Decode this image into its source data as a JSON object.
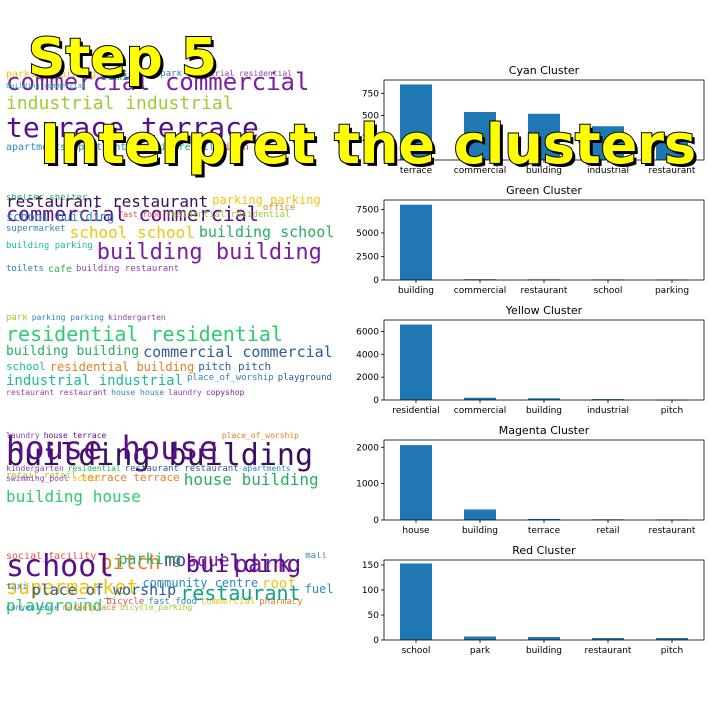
{
  "overlay": {
    "step": "Step 5",
    "subtitle": "Interpret the clusters"
  },
  "colors": {
    "bar": "#1f77b4",
    "overlay_fill": "#ffff00",
    "overlay_stroke": "#000000"
  },
  "wordclouds": [
    {
      "words": [
        {
          "t": "commercial commercial",
          "c": "#7a1fa2",
          "s": 24
        },
        {
          "t": "industrial industrial",
          "c": "#9acd32",
          "s": 18
        },
        {
          "t": "terrace terrace",
          "c": "#5a0f8a",
          "s": 28
        },
        {
          "t": "apartments apartments",
          "c": "#2e86c1",
          "s": 10
        },
        {
          "t": "retail retail",
          "c": "#27ae60",
          "s": 10
        },
        {
          "t": "pitch pitch",
          "c": "#e74c3c",
          "s": 10
        },
        {
          "t": "parking parking",
          "c": "#f1c40f",
          "s": 10
        },
        {
          "t": "semi",
          "c": "#16a085",
          "s": 12
        },
        {
          "t": "park park",
          "c": "#2980b9",
          "s": 9
        },
        {
          "t": "industrial residential",
          "c": "#8e44ad",
          "s": 8
        },
        {
          "t": "building commercial",
          "c": "#1abc9c",
          "s": 7
        }
      ]
    },
    {
      "words": [
        {
          "t": "shelter shelter",
          "c": "#27ae60",
          "s": 9
        },
        {
          "t": "commercial commercial",
          "c": "#5a0f8a",
          "s": 20
        },
        {
          "t": "office",
          "c": "#e67e22",
          "s": 9
        },
        {
          "t": "supermarket",
          "c": "#2e86c1",
          "s": 9
        },
        {
          "t": "school school",
          "c": "#f1c40f",
          "s": 16
        },
        {
          "t": "building school",
          "c": "#27ae60",
          "s": 15
        },
        {
          "t": "building parking",
          "c": "#1abc9c",
          "s": 9
        },
        {
          "t": "building building",
          "c": "#7a1fa2",
          "s": 22
        },
        {
          "t": "toilets",
          "c": "#2980b9",
          "s": 9
        },
        {
          "t": "cafe",
          "c": "#27ae60",
          "s": 10
        },
        {
          "t": "building restaurant",
          "c": "#8e44ad",
          "s": 9
        },
        {
          "t": "restaurant restaurant",
          "c": "#3a0f5a",
          "s": 16
        },
        {
          "t": "parking parking",
          "c": "#f1c40f",
          "s": 12
        },
        {
          "t": "school building",
          "c": "#2e86c1",
          "s": 12
        },
        {
          "t": "fast_food",
          "c": "#e74c3c",
          "s": 8
        },
        {
          "t": "residential residential",
          "c": "#9acd32",
          "s": 9
        }
      ]
    },
    {
      "words": [
        {
          "t": "park",
          "c": "#9acd32",
          "s": 9
        },
        {
          "t": "parking parking",
          "c": "#2e86c1",
          "s": 8
        },
        {
          "t": "kindergarten",
          "c": "#8e44ad",
          "s": 8
        },
        {
          "t": "residential residential",
          "c": "#2ecc71",
          "s": 20
        },
        {
          "t": "building building",
          "c": "#27ae60",
          "s": 13
        },
        {
          "t": "commercial commercial",
          "c": "#2e5a9a",
          "s": 15
        },
        {
          "t": "school",
          "c": "#1abc9c",
          "s": 11
        },
        {
          "t": "residential building",
          "c": "#e67e22",
          "s": 12
        },
        {
          "t": "pitch pitch",
          "c": "#2e5a9a",
          "s": 11
        },
        {
          "t": "industrial industrial",
          "c": "#1abc9c",
          "s": 14
        },
        {
          "t": "place_of_worship",
          "c": "#2e86c1",
          "s": 9
        },
        {
          "t": "playground",
          "c": "#2e5a9a",
          "s": 9
        },
        {
          "t": "restaurant restaurant",
          "c": "#8e44ad",
          "s": 8
        },
        {
          "t": "house house",
          "c": "#2e86c1",
          "s": 8
        },
        {
          "t": "laundry",
          "c": "#8e44ad",
          "s": 8
        },
        {
          "t": "copyshop",
          "c": "#7a1fa2",
          "s": 8
        }
      ]
    },
    {
      "words": [
        {
          "t": "laundry",
          "c": "#8e44ad",
          "s": 8
        },
        {
          "t": "house terrace",
          "c": "#5a0f8a",
          "s": 8
        },
        {
          "t": "building building",
          "c": "#3a0f5a",
          "s": 30
        },
        {
          "t": "retail retail",
          "c": "#9acd32",
          "s": 9
        },
        {
          "t": "terrace terrace",
          "c": "#e67e22",
          "s": 11
        },
        {
          "t": "house building",
          "c": "#27ae60",
          "s": 16
        },
        {
          "t": "building house",
          "c": "#2ecc71",
          "s": 16
        },
        {
          "t": "house house",
          "c": "#5a0f8a",
          "s": 32
        },
        {
          "t": "place_of_worship",
          "c": "#e67e22",
          "s": 8
        },
        {
          "t": "kindergarten",
          "c": "#8e44ad",
          "s": 8
        },
        {
          "t": "residential",
          "c": "#27ae60",
          "s": 8
        },
        {
          "t": "restaurant restaurant",
          "c": "#2e5a9a",
          "s": 9
        },
        {
          "t": "apartments",
          "c": "#2e86c1",
          "s": 8
        },
        {
          "t": "swimming_pool",
          "c": "#8e44ad",
          "s": 8
        },
        {
          "t": "school",
          "c": "#f1c40f",
          "s": 8
        }
      ]
    },
    {
      "words": [
        {
          "t": "social_facility",
          "c": "#e74c3c",
          "s": 10
        },
        {
          "t": "pitch",
          "c": "#e67e22",
          "s": 20
        },
        {
          "t": "mosque",
          "c": "#7a1fa2",
          "s": 18
        },
        {
          "t": "park",
          "c": "#7a1fa2",
          "s": 24
        },
        {
          "t": "supermarket",
          "c": "#f1c40f",
          "s": 20
        },
        {
          "t": "community_centre",
          "c": "#2e86c1",
          "s": 12
        },
        {
          "t": "roof",
          "c": "#f1c40f",
          "s": 14
        },
        {
          "t": "playground",
          "c": "#2ecc71",
          "s": 16
        },
        {
          "t": "bicycle",
          "c": "#e74c3c",
          "s": 9
        },
        {
          "t": "fast_food",
          "c": "#2e86c1",
          "s": 9
        },
        {
          "t": "commercial",
          "c": "#f1c40f",
          "s": 9
        },
        {
          "t": "pharmacy",
          "c": "#e67e22",
          "s": 9
        },
        {
          "t": "school",
          "c": "#5a0f8a",
          "s": 30
        },
        {
          "t": "parking",
          "c": "#27ae60",
          "s": 15
        },
        {
          "t": "building",
          "c": "#5a0f8a",
          "s": 24
        },
        {
          "t": "mall",
          "c": "#2e86c1",
          "s": 9
        },
        {
          "t": "taxi",
          "c": "#2e86c1",
          "s": 9
        },
        {
          "t": "place_of_worship",
          "c": "#2e5a9a",
          "s": 15
        },
        {
          "t": "restaurant",
          "c": "#16a085",
          "s": 20
        },
        {
          "t": "fuel",
          "c": "#2e86c1",
          "s": 12
        },
        {
          "t": "convenience",
          "c": "#2e86c1",
          "s": 8
        },
        {
          "t": "marketplace",
          "c": "#e67e22",
          "s": 8
        },
        {
          "t": "bicycle_parking",
          "c": "#9acd32",
          "s": 8
        }
      ]
    }
  ],
  "chart_data": [
    {
      "type": "bar",
      "title": "Cyan Cluster",
      "categories": [
        "terrace",
        "commercial",
        "building",
        "industrial",
        "restaurant"
      ],
      "values": [
        850,
        540,
        520,
        380,
        210
      ],
      "ylim": [
        0,
        900
      ],
      "yticks": [
        250,
        500,
        750
      ]
    },
    {
      "type": "bar",
      "title": "Green Cluster",
      "categories": [
        "building",
        "commercial",
        "restaurant",
        "school",
        "parking"
      ],
      "values": [
        8000,
        80,
        70,
        60,
        50
      ],
      "ylim": [
        0,
        8500
      ],
      "yticks": [
        0,
        2500,
        5000,
        7500
      ]
    },
    {
      "type": "bar",
      "title": "Yellow Cluster",
      "categories": [
        "residential",
        "commercial",
        "building",
        "industrial",
        "pitch"
      ],
      "values": [
        6600,
        200,
        150,
        80,
        30
      ],
      "ylim": [
        0,
        7000
      ],
      "yticks": [
        0,
        2000,
        4000,
        6000
      ]
    },
    {
      "type": "bar",
      "title": "Magenta Cluster",
      "categories": [
        "house",
        "building",
        "terrace",
        "retail",
        "restaurant"
      ],
      "values": [
        2060,
        290,
        30,
        20,
        15
      ],
      "ylim": [
        0,
        2200
      ],
      "yticks": [
        0,
        1000,
        2000
      ]
    },
    {
      "type": "bar",
      "title": "Red Cluster",
      "categories": [
        "school",
        "park",
        "building",
        "restaurant",
        "pitch"
      ],
      "values": [
        153,
        7,
        6,
        4,
        4
      ],
      "ylim": [
        0,
        160
      ],
      "yticks": [
        0,
        50,
        100,
        150
      ]
    }
  ]
}
